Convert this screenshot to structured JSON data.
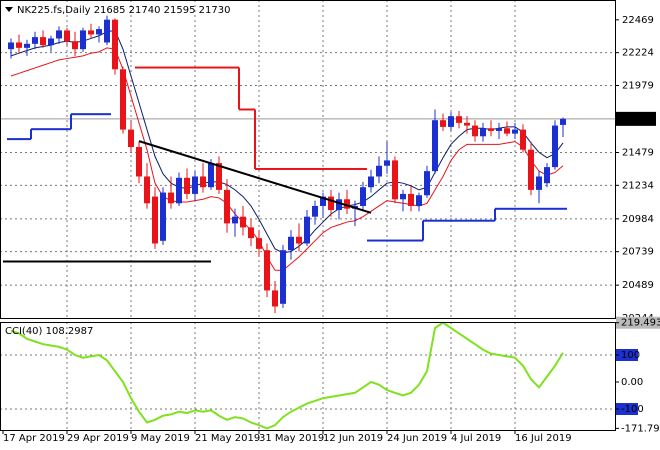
{
  "chart_data": [
    {
      "type": "candlestick",
      "title": "NK225.fs,Daily  21685 21740 21595 21730",
      "categories": [
        "17 Apr 2019",
        null,
        null,
        null,
        null,
        null,
        null,
        null,
        "29 Apr 2019",
        null,
        null,
        null,
        null,
        null,
        null,
        null,
        "9 May 2019",
        null,
        null,
        null,
        null,
        null,
        null,
        null,
        "21 May 2019",
        null,
        null,
        null,
        null,
        null,
        null,
        null,
        "31 May 2019",
        null,
        null,
        null,
        null,
        null,
        null,
        null,
        "12 Jun 2019",
        null,
        null,
        null,
        null,
        null,
        null,
        null,
        "24 Jun 2019",
        null,
        null,
        null,
        null,
        null,
        null,
        null,
        "4 Jul 2019",
        null,
        null,
        null,
        null,
        null,
        null,
        null,
        "16 Jul 2019",
        null,
        null,
        null,
        null,
        null
      ],
      "open": [
        22250,
        22300,
        22260,
        22290,
        22340,
        22280,
        22330,
        22390,
        22310,
        22250,
        22390,
        22360,
        22300,
        22470,
        22100,
        21650,
        21520,
        21300,
        21150,
        20820,
        21180,
        21100,
        21290,
        21170,
        21300,
        21220,
        21400,
        21200,
        20950,
        21000,
        20920,
        20840,
        20750,
        20450,
        20350,
        20750,
        20850,
        20800,
        21000,
        21080,
        21150,
        21050,
        21130,
        21060,
        21080,
        21220,
        21300,
        21380,
        21420,
        21130,
        21170,
        21080,
        21160,
        21340,
        21720,
        21670,
        21750,
        21700,
        21680,
        21600,
        21660,
        21640,
        21660,
        21620,
        21650,
        21500,
        21200,
        21250,
        21370,
        21685
      ],
      "high": [
        22330,
        22360,
        22320,
        22380,
        22390,
        22350,
        22420,
        22410,
        22380,
        22410,
        22440,
        22420,
        22500,
        22480,
        22120,
        21720,
        21560,
        21400,
        21220,
        21220,
        21300,
        21330,
        21360,
        21340,
        21400,
        21430,
        21450,
        21280,
        21060,
        21080,
        20980,
        20900,
        20800,
        20520,
        20790,
        20900,
        20950,
        21050,
        21120,
        21180,
        21200,
        21180,
        21200,
        21120,
        21260,
        21350,
        21450,
        21560,
        21450,
        21200,
        21230,
        21180,
        21380,
        21800,
        21770,
        21780,
        21790,
        21750,
        21720,
        21700,
        21720,
        21700,
        21710,
        21700,
        21690,
        21560,
        21340,
        21400,
        21720,
        21740
      ],
      "low": [
        22180,
        22220,
        22200,
        22250,
        22260,
        22230,
        22290,
        22280,
        22200,
        22230,
        22330,
        22300,
        22280,
        22060,
        21620,
        21480,
        21250,
        21060,
        20760,
        20790,
        21060,
        21080,
        21130,
        21120,
        21180,
        21200,
        21170,
        20880,
        20850,
        20860,
        20780,
        20700,
        20400,
        20280,
        20320,
        20680,
        20740,
        20780,
        20940,
        20990,
        21000,
        20980,
        21020,
        20930,
        21040,
        21180,
        21250,
        21320,
        21100,
        21040,
        21040,
        21040,
        21140,
        21320,
        21640,
        21640,
        21660,
        21620,
        21560,
        21560,
        21600,
        21580,
        21600,
        21580,
        21480,
        21160,
        21100,
        21220,
        21350,
        21595
      ],
      "close": [
        22300,
        22260,
        22290,
        22340,
        22280,
        22330,
        22390,
        22310,
        22250,
        22390,
        22360,
        22400,
        22470,
        22100,
        21650,
        21520,
        21300,
        21100,
        20800,
        21180,
        21100,
        21290,
        21170,
        21300,
        21220,
        21400,
        21200,
        20950,
        21000,
        20920,
        20840,
        20760,
        20450,
        20330,
        20750,
        20850,
        20800,
        21000,
        21080,
        21150,
        21050,
        21130,
        21060,
        21080,
        21220,
        21300,
        21380,
        21420,
        21130,
        21170,
        21080,
        21160,
        21340,
        21720,
        21670,
        21750,
        21700,
        21680,
        21600,
        21660,
        21640,
        21660,
        21620,
        21650,
        21500,
        21200,
        21300,
        21370,
        21680,
        21730
      ],
      "up_color": "#1c2fd0",
      "down_color": "#e8141a",
      "series": [
        {
          "color": "#0a1e6e",
          "values": [
            22200,
            22220,
            22240,
            22260,
            22270,
            22280,
            22300,
            22310,
            22300,
            22310,
            22330,
            22350,
            22380,
            22390,
            22250,
            22050,
            21850,
            21650,
            21450,
            21320,
            21250,
            21220,
            21210,
            21230,
            21250,
            21260,
            21260,
            21240,
            21200,
            21150,
            21080,
            20980,
            20870,
            20760,
            20730,
            20740,
            20780,
            20830,
            20900,
            20960,
            21020,
            21060,
            21080,
            21090,
            21110,
            21150,
            21200,
            21250,
            21260,
            21250,
            21230,
            21200,
            21220,
            21330,
            21440,
            21540,
            21600,
            21650,
            21660,
            21660,
            21650,
            21660,
            21670,
            21670,
            21630,
            21550,
            21480,
            21440,
            21470,
            21550
          ]
        },
        {
          "color": "#e8141a",
          "values": [
            22050,
            22070,
            22090,
            22110,
            22130,
            22150,
            22170,
            22180,
            22190,
            22200,
            22220,
            22230,
            22260,
            22250,
            22100,
            21900,
            21700,
            21500,
            21250,
            21150,
            21120,
            21110,
            21110,
            21120,
            21130,
            21150,
            21140,
            21100,
            21020,
            20960,
            20900,
            20820,
            20700,
            20600,
            20600,
            20650,
            20700,
            20760,
            20820,
            20880,
            20920,
            20940,
            20960,
            20970,
            21000,
            21040,
            21080,
            21120,
            21110,
            21100,
            21090,
            21080,
            21100,
            21200,
            21300,
            21420,
            21500,
            21540,
            21540,
            21540,
            21540,
            21540,
            21550,
            21560,
            21520,
            21420,
            21340,
            21310,
            21330,
            21380
          ]
        }
      ],
      "steps": [
        {
          "color": "#e8141a",
          "values": [
            null,
            null,
            null,
            null,
            null,
            null,
            null,
            null,
            null,
            null,
            null,
            null,
            null,
            null,
            null,
            null,
            22113,
            22113,
            22113,
            22113,
            22113,
            22113,
            22113,
            22113,
            22113,
            22113,
            22113,
            22113,
            22113,
            21800,
            21800,
            21356,
            21356,
            21356,
            21356,
            21356,
            21356,
            21356,
            21356,
            21356,
            21356,
            21356,
            21356,
            21356,
            21356,
            null,
            null,
            null,
            null,
            null,
            null,
            null,
            null,
            null,
            null,
            null,
            null,
            null,
            null,
            null,
            null,
            null,
            null,
            null,
            null,
            null,
            null,
            null,
            null,
            null
          ]
        },
        {
          "color": "#1c2fd0",
          "values": [
            21579,
            21579,
            21579,
            21653,
            21653,
            21653,
            21653,
            21653,
            21765,
            21765,
            21765,
            21765,
            21765,
            null,
            null,
            null,
            null,
            null,
            null,
            null,
            null,
            null,
            null,
            null,
            null,
            null,
            null,
            null,
            null,
            null,
            null,
            null,
            null,
            null,
            null,
            null,
            null,
            null,
            null,
            null,
            null,
            null,
            null,
            null,
            null,
            20822,
            20822,
            20822,
            20822,
            20822,
            20822,
            20822,
            20970,
            20970,
            20970,
            20970,
            20970,
            20970,
            20970,
            20970,
            20970,
            21059,
            21059,
            21059,
            21059,
            21059,
            21059,
            21059,
            21059,
            21059
          ]
        }
      ],
      "trendlines": [
        {
          "color": "#000000",
          "x": [
            16,
            45
          ],
          "y": [
            21564,
            21029
          ]
        },
        {
          "color": "#000000",
          "x": [
            -1,
            25
          ],
          "y": [
            20666,
            20666
          ]
        }
      ],
      "ylim": [
        20244,
        22617
      ],
      "yticks": [
        22469,
        22224,
        21979,
        21730,
        21479,
        21234,
        20984,
        20739,
        20489,
        20244
      ],
      "current_price_line": true,
      "grid": true
    },
    {
      "type": "line",
      "title": "CCI(40) 108.2987",
      "color": "#7ee21c",
      "values": [
        190,
        180,
        160,
        150,
        140,
        135,
        130,
        120,
        100,
        90,
        95,
        100,
        80,
        40,
        0,
        -60,
        -110,
        -150,
        -140,
        -125,
        -120,
        -110,
        -115,
        -105,
        -110,
        -105,
        -125,
        -140,
        -130,
        -135,
        -150,
        -160,
        -171.7996,
        -160,
        -130,
        -110,
        -95,
        -80,
        -70,
        -60,
        -55,
        -50,
        -45,
        -40,
        -20,
        0,
        -10,
        -30,
        -40,
        -50,
        -40,
        -10,
        40,
        200,
        219.4936,
        200,
        180,
        160,
        140,
        120,
        105,
        100,
        95,
        90,
        60,
        10,
        -20,
        20,
        60,
        108.2987
      ],
      "ylim": [
        -177.8,
        222.2
      ],
      "yticks": [
        219.4936,
        100,
        {
          "value": 0,
          "label": "0.00"
        },
        -100,
        -171.7996
      ],
      "levels": [
        100,
        -100
      ],
      "grid": true
    }
  ]
}
